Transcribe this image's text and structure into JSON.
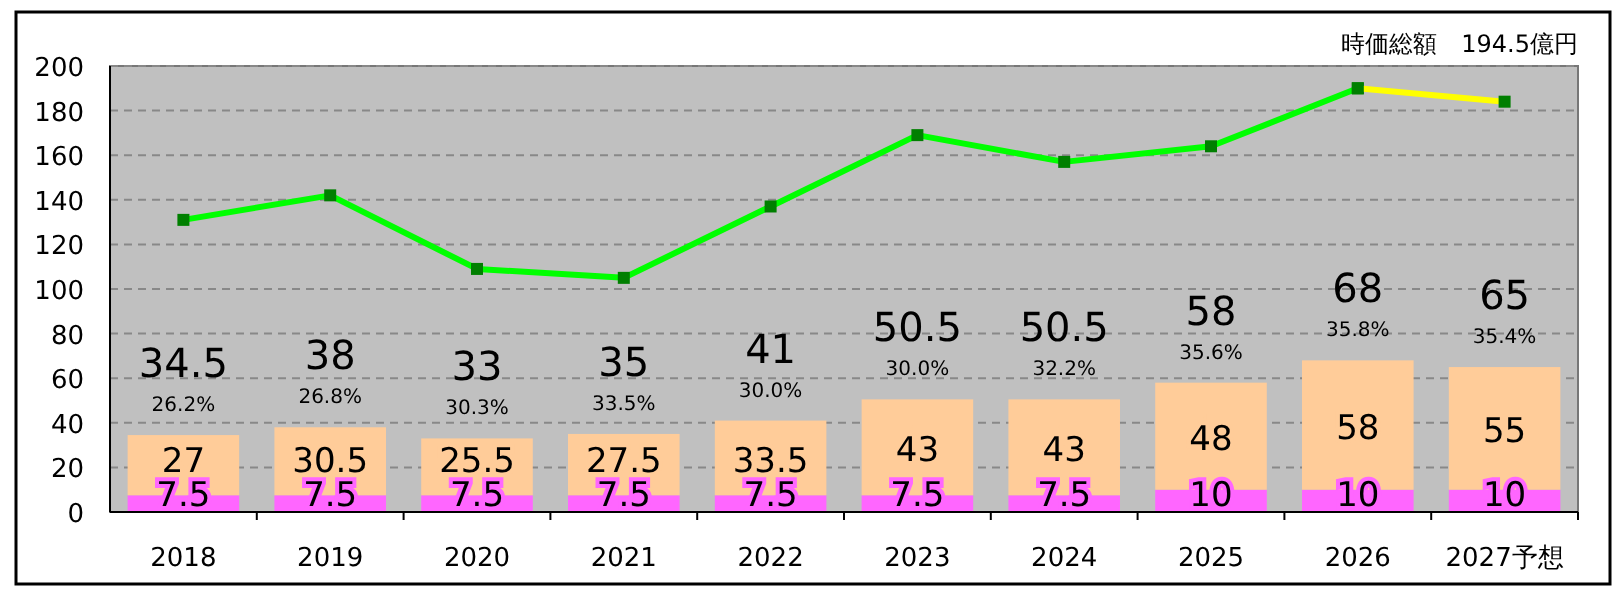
{
  "chart_data": {
    "type": "bar",
    "stacked": true,
    "grid": "y",
    "categories": [
      "2018",
      "2019",
      "2020",
      "2021",
      "2022",
      "2023",
      "2024",
      "2025",
      "2026",
      "2027予想"
    ],
    "ylim": [
      0,
      200
    ],
    "yticks": [
      0,
      20,
      40,
      60,
      80,
      100,
      120,
      140,
      160,
      180,
      200
    ],
    "series": [
      {
        "type": "bar",
        "color": "#ff66ff",
        "values": [
          7.5,
          7.5,
          7.5,
          7.5,
          7.5,
          7.5,
          7.5,
          10,
          10,
          10
        ],
        "value_labels": [
          "7.5",
          "7.5",
          "7.5",
          "7.5",
          "7.5",
          "7.5",
          "7.5",
          "10",
          "10",
          "10"
        ]
      },
      {
        "type": "bar",
        "color": "#ffcc99",
        "values": [
          27,
          30.5,
          25.5,
          27.5,
          33.5,
          43,
          43,
          48,
          58,
          55
        ],
        "value_labels": [
          "27",
          "30.5",
          "25.5",
          "27.5",
          "33.5",
          "43",
          "43",
          "48",
          "58",
          "55"
        ]
      },
      {
        "type": "line",
        "color": "#00ff00",
        "marker": "square",
        "values": [
          131,
          142,
          109,
          105,
          137,
          169,
          157,
          164,
          190,
          null
        ]
      },
      {
        "type": "line",
        "color": "#ffff00",
        "marker": "square",
        "values": [
          null,
          null,
          null,
          null,
          null,
          null,
          null,
          null,
          190,
          184
        ]
      }
    ],
    "totals": [
      "34.5",
      "38",
      "33",
      "35",
      "41",
      "50.5",
      "50.5",
      "58",
      "68",
      "65"
    ],
    "annotations": [
      "時価総額　194.5億円",
      "26.2%",
      "26.8%",
      "30.3%",
      "33.5%",
      "30.0%",
      "30.0%",
      "32.2%",
      "35.6%",
      "35.8%",
      "35.4%"
    ]
  }
}
